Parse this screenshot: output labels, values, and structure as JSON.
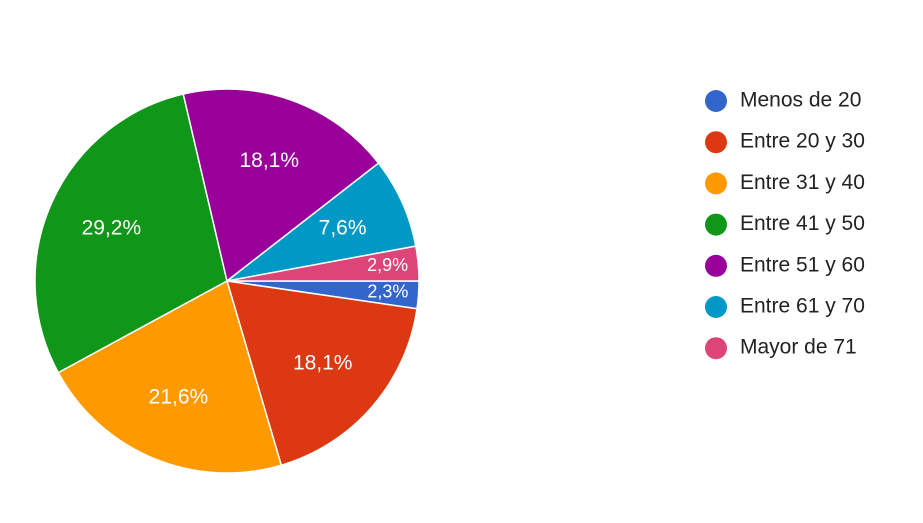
{
  "chart_data": {
    "type": "pie",
    "categories": [
      "Menos de 20",
      "Entre 20 y 30",
      "Entre 31 y 40",
      "Entre 41 y 50",
      "Entre 51 y 60",
      "Entre 61 y 70",
      "Mayor de 71"
    ],
    "values": [
      2.3,
      18.1,
      21.6,
      29.2,
      18.1,
      7.6,
      2.9
    ],
    "value_labels": [
      "2,3%",
      "18,1%",
      "21,6%",
      "29,2%",
      "18,1%",
      "7,6%",
      "2,9%"
    ],
    "colors": [
      "#3366cc",
      "#dc3912",
      "#ff9900",
      "#109618",
      "#990099",
      "#0099c6",
      "#dd4477"
    ],
    "legend": "right"
  }
}
